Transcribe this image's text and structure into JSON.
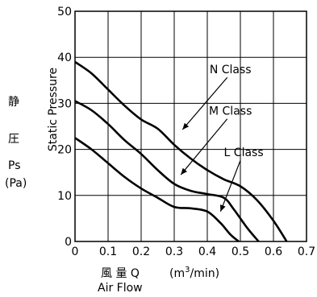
{
  "chart_data": {
    "type": "line",
    "title": "",
    "xlabel": {
      "jp": "風 量 Q",
      "unit_prefix": "(m",
      "unit_sup": "3",
      "unit_suffix": "/min)",
      "en": "Air Flow"
    },
    "ylabel": {
      "jp_chars": [
        "静",
        "圧"
      ],
      "symbol": "Ps",
      "unit": "(Pa)",
      "en": "Static Pressure"
    },
    "xlim": [
      0,
      0.7
    ],
    "ylim": [
      0,
      50
    ],
    "xticks": [
      0,
      0.1,
      0.2,
      0.3,
      0.4,
      0.5,
      0.6,
      0.7
    ],
    "xtick_labels": [
      "0",
      "0.1",
      "0.2",
      "0.3",
      "0.4",
      "0.5",
      "0.6",
      "0.7"
    ],
    "yticks": [
      0,
      10,
      20,
      30,
      40,
      50
    ],
    "ytick_labels": [
      "0",
      "10",
      "20",
      "30",
      "40",
      "50"
    ],
    "grid": true,
    "legend": "none",
    "series": [
      {
        "name": "N Class",
        "label_at": [
          0.47,
          36.5
        ],
        "pointer_to": [
          0.325,
          24.3
        ],
        "x": [
          0,
          0.05,
          0.1,
          0.15,
          0.2,
          0.25,
          0.3,
          0.35,
          0.4,
          0.45,
          0.5,
          0.55,
          0.6,
          0.64
        ],
        "y": [
          39,
          36.5,
          33,
          29.5,
          26.5,
          24.5,
          21,
          18,
          15.5,
          13.5,
          12,
          9,
          4.5,
          0
        ]
      },
      {
        "name": "M Class",
        "label_at": [
          0.47,
          27.5
        ],
        "pointer_to": [
          0.32,
          14.5
        ],
        "x": [
          0,
          0.05,
          0.1,
          0.15,
          0.2,
          0.25,
          0.3,
          0.35,
          0.4,
          0.45,
          0.48,
          0.52,
          0.555
        ],
        "y": [
          30.5,
          28.5,
          25.5,
          22,
          19,
          15.5,
          12.5,
          11,
          10.3,
          9.5,
          7,
          3,
          0
        ]
      },
      {
        "name": "L Class",
        "label_at": [
          0.51,
          18.5
        ],
        "pointer_to": [
          0.44,
          6.5
        ],
        "x": [
          0,
          0.05,
          0.1,
          0.15,
          0.2,
          0.25,
          0.3,
          0.35,
          0.4,
          0.44,
          0.47,
          0.495
        ],
        "y": [
          22.5,
          20,
          17,
          14,
          11.5,
          9.5,
          7.5,
          7.2,
          6.5,
          4,
          1.5,
          0
        ]
      }
    ]
  }
}
